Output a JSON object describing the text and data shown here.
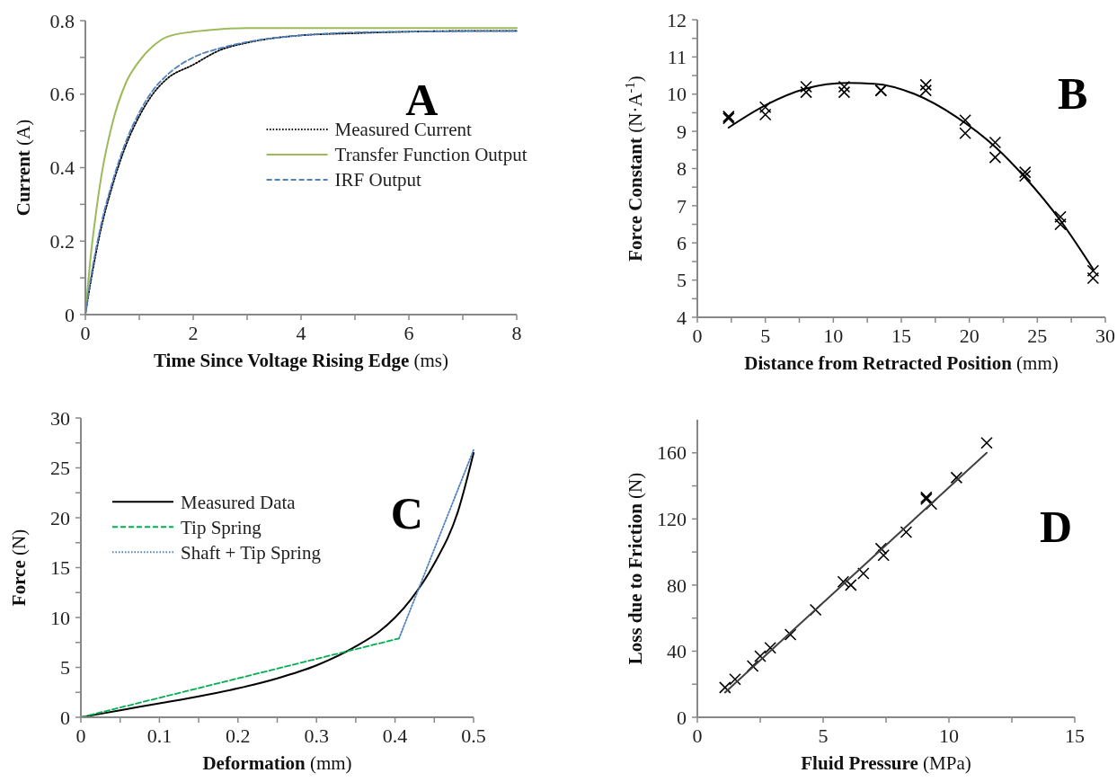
{
  "chart_data": [
    {
      "type": "line",
      "xlabel": "Time Since Voltage Rising Edge (ms)",
      "ylabel": "Current (A)",
      "annotations": [
        "A"
      ],
      "xlim": [
        0,
        8
      ],
      "xticks": [
        0,
        {
          "value": 1,
          "label": null
        },
        2,
        {
          "value": 3,
          "label": null
        },
        4,
        {
          "value": 5,
          "label": null
        },
        6,
        {
          "value": 7,
          "label": null
        },
        8
      ],
      "ylim": [
        0,
        0.8
      ],
      "yticks": [
        0,
        {
          "value": 0.1,
          "label": null
        },
        0.2,
        {
          "value": 0.3,
          "label": null
        },
        0.4,
        {
          "value": 0.5,
          "label": null
        },
        0.6,
        {
          "value": 0.7,
          "label": null
        },
        0.8
      ],
      "legend": "right",
      "grid": false,
      "series": [
        {
          "name": "Measured Current",
          "color": "#000000",
          "line_style": "dotted",
          "x": [
            0,
            0.1,
            0.2,
            0.3,
            0.5,
            0.75,
            1,
            1.25,
            1.5,
            2,
            2.5,
            3,
            4,
            5,
            6,
            7,
            8
          ],
          "values": [
            0,
            0.09,
            0.17,
            0.24,
            0.35,
            0.46,
            0.54,
            0.6,
            0.64,
            0.68,
            0.72,
            0.74,
            0.76,
            0.766,
            0.77,
            0.772,
            0.772
          ]
        },
        {
          "name": "Transfer Function Output",
          "color": "#9bbb59",
          "line_style": "solid",
          "x": [
            0,
            0.1,
            0.2,
            0.3,
            0.5,
            0.75,
            1,
            1.25,
            1.5,
            2,
            2.5,
            3,
            4,
            8
          ],
          "values": [
            0,
            0.16,
            0.28,
            0.38,
            0.52,
            0.63,
            0.69,
            0.73,
            0.755,
            0.77,
            0.777,
            0.78,
            0.78,
            0.78
          ]
        },
        {
          "name": "IRF Output",
          "color": "#4f81bd",
          "line_style": "dashed",
          "x": [
            0,
            0.1,
            0.2,
            0.3,
            0.5,
            0.75,
            1,
            1.25,
            1.5,
            2,
            2.5,
            3,
            4,
            5,
            6,
            8
          ],
          "values": [
            0,
            0.1,
            0.18,
            0.25,
            0.36,
            0.47,
            0.55,
            0.61,
            0.65,
            0.7,
            0.725,
            0.742,
            0.76,
            0.768,
            0.77,
            0.772
          ]
        }
      ]
    },
    {
      "type": "scatter",
      "xlabel": "Distance from Retracted Position (mm)",
      "ylabel": "Force Constant (N·A$^{-1}$)",
      "annotations": [
        "B"
      ],
      "xlim": [
        0,
        30
      ],
      "xticks": [
        0,
        {
          "value": 2.5,
          "label": null
        },
        5,
        {
          "value": 7.5,
          "label": null
        },
        10,
        {
          "value": 12.5,
          "label": null
        },
        15,
        {
          "value": 17.5,
          "label": null
        },
        20,
        {
          "value": 22.5,
          "label": null
        },
        25,
        {
          "value": 27.5,
          "label": null
        },
        30
      ],
      "ylim": [
        4,
        12
      ],
      "yticks": [
        4,
        {
          "value": 4.5,
          "label": null
        },
        5,
        {
          "value": 5.5,
          "label": null
        },
        6,
        {
          "value": 6.5,
          "label": null
        },
        7,
        {
          "value": 7.5,
          "label": null
        },
        8,
        {
          "value": 8.5,
          "label": null
        },
        9,
        {
          "value": 9.5,
          "label": null
        },
        10,
        {
          "value": 10.5,
          "label": null
        },
        11,
        {
          "value": 11.5,
          "label": null
        },
        12
      ],
      "grid": false,
      "series": [
        {
          "marker": "cross",
          "color": "#000000",
          "x": [
            2.3,
            2.3,
            5,
            5,
            8,
            8,
            10.8,
            10.8,
            13.5,
            13.5,
            16.8,
            16.8,
            19.7,
            19.7,
            21.9,
            21.9,
            24.1,
            24.1,
            26.7,
            26.7,
            29.1,
            29.1
          ],
          "values": [
            9.4,
            9.35,
            9.65,
            9.45,
            10.2,
            10.05,
            10.2,
            10.05,
            10.1,
            10.1,
            10.25,
            10.1,
            9.3,
            8.95,
            8.7,
            8.3,
            7.9,
            7.8,
            6.7,
            6.5,
            5.25,
            5.05
          ]
        },
        {
          "type": "line",
          "line_style": "solid",
          "color": "#000000",
          "x": [
            2.3,
            5,
            8,
            11,
            13,
            16,
            19,
            22,
            24,
            26.7,
            29.1
          ],
          "values": [
            9.1,
            9.7,
            10.15,
            10.3,
            10.28,
            10,
            9.4,
            8.55,
            7.8,
            6.6,
            5.3
          ]
        }
      ]
    },
    {
      "type": "line",
      "xlabel": "Deformation (mm)",
      "ylabel": "Force (N)",
      "annotations": [
        "C"
      ],
      "xlim": [
        0,
        0.5
      ],
      "xticks": [
        0,
        {
          "value": 0.05,
          "label": null
        },
        0.1,
        {
          "value": 0.15,
          "label": null
        },
        0.2,
        {
          "value": 0.25,
          "label": null
        },
        0.3,
        {
          "value": 0.35,
          "label": null
        },
        0.4,
        {
          "value": 0.45,
          "label": null
        },
        0.5
      ],
      "ylim": [
        0,
        30
      ],
      "yticks": [
        0,
        {
          "value": 2.5,
          "label": null
        },
        5,
        {
          "value": 7.5,
          "label": null
        },
        10,
        {
          "value": 12.5,
          "label": null
        },
        15,
        {
          "value": 17.5,
          "label": null
        },
        20,
        {
          "value": 22.5,
          "label": null
        },
        25,
        {
          "value": 27.5,
          "label": null
        },
        30
      ],
      "legend": "top left",
      "grid": false,
      "series": [
        {
          "name": "Measured Data",
          "color": "#000000",
          "line_style": "solid",
          "x": [
            0,
            0.05,
            0.1,
            0.15,
            0.2,
            0.25,
            0.3,
            0.35,
            0.38,
            0.4,
            0.42,
            0.45,
            0.48,
            0.5
          ],
          "values": [
            0,
            0.7,
            1.4,
            2.1,
            2.9,
            3.9,
            5.2,
            7.1,
            8.6,
            10,
            11.8,
            15.4,
            20.6,
            26.5
          ]
        },
        {
          "name": "Tip Spring",
          "color": "#00b050",
          "line_style": "dashed",
          "x": [
            0,
            0.405
          ],
          "values": [
            0,
            7.9
          ]
        },
        {
          "name": "Shaft + Tip Spring",
          "color": "#4f81bd",
          "line_style": "dotted",
          "x": [
            0.405,
            0.5
          ],
          "values": [
            7.9,
            26.8
          ]
        }
      ]
    },
    {
      "type": "scatter",
      "xlabel": "Fluid Pressure (MPa)",
      "ylabel": "Loss due to Friction (N)",
      "annotations": [
        "D"
      ],
      "xlim": [
        0,
        15
      ],
      "xticks": [
        0,
        {
          "value": 2.5,
          "label": null
        },
        5,
        {
          "value": 7.5,
          "label": null
        },
        10,
        {
          "value": 12.5,
          "label": null
        },
        15
      ],
      "ylim": [
        0,
        180
      ],
      "yticks": [
        0,
        {
          "value": 20,
          "label": null
        },
        40,
        {
          "value": 60,
          "label": null
        },
        80,
        {
          "value": 100,
          "label": null
        },
        120,
        {
          "value": 140,
          "label": null
        },
        160
      ],
      "grid": false,
      "series": [
        {
          "marker": "cross",
          "color": "#000000",
          "x": [
            1.1,
            1.5,
            2.2,
            2.5,
            2.9,
            3.7,
            4.7,
            5.8,
            6.1,
            6.6,
            7.3,
            7.4,
            8.3,
            9.1,
            9.1,
            9.3,
            10.3,
            11.5
          ],
          "values": [
            18,
            23,
            31,
            37,
            42,
            50,
            65,
            82,
            80,
            87,
            102,
            98,
            112,
            133,
            132,
            129,
            145,
            166
          ]
        },
        {
          "type": "line",
          "line_style": "solid",
          "color": "#404040",
          "x": [
            1.1,
            11.5
          ],
          "values": [
            15,
            160
          ]
        }
      ]
    }
  ]
}
